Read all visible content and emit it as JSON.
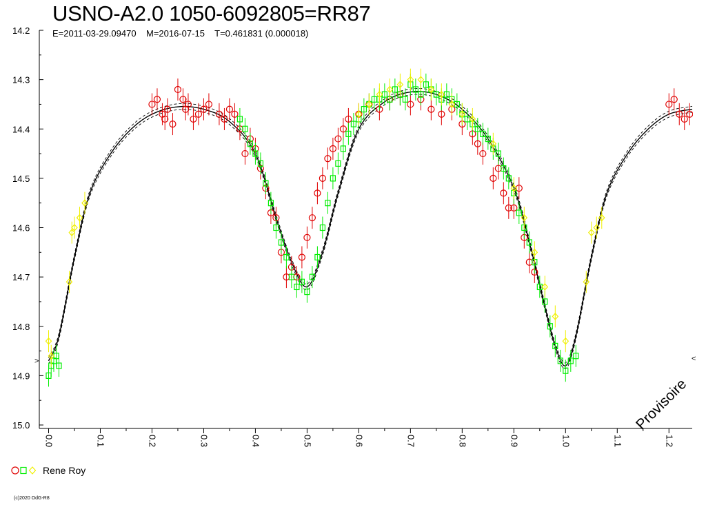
{
  "title": "USNO-A2.0 1050-6092805=RR87",
  "subtitle": "E=2011-03-29.09470    M=2016-07-15    T=0.461831 (0.000018)",
  "legend_label": "Rene Roy",
  "copyright": "(c)2020 OdG-R8",
  "watermark": "Provisoire",
  "corner_mark": "<",
  "colors": {
    "red": "#e00000",
    "green": "#00ee00",
    "yellow": "#f0f000",
    "axis": "#000000"
  },
  "chart_data": {
    "type": "scatter",
    "title": "USNO-A2.0 1050-6092805=RR87",
    "xlim": [
      -0.01,
      1.245
    ],
    "ylim": [
      14.2,
      15.0
    ],
    "y_inverted": true,
    "x_tick_labels": [
      "0.0",
      "0.1",
      "0.2",
      "0.3",
      "0.4",
      "0.5",
      "0.6",
      "0.7",
      "0.8",
      "0.9",
      "1.0",
      "1.1",
      "1.2"
    ],
    "x_ticks": [
      0.0,
      0.1,
      0.2,
      0.3,
      0.4,
      0.5,
      0.6,
      0.7,
      0.8,
      0.9,
      1.0,
      1.1,
      1.2
    ],
    "y_tick_labels": [
      "14.2",
      "14.3",
      "14.4",
      "14.5",
      "14.6",
      "14.7",
      "14.8",
      "14.9",
      "15.0"
    ],
    "y_ticks": [
      14.2,
      14.3,
      14.4,
      14.5,
      14.6,
      14.7,
      14.8,
      14.9,
      15.0
    ],
    "model_curve": {
      "phase": [
        0.0,
        0.02,
        0.05,
        0.08,
        0.12,
        0.16,
        0.2,
        0.25,
        0.3,
        0.35,
        0.4,
        0.44,
        0.47,
        0.5,
        0.53,
        0.56,
        0.6,
        0.65,
        0.7,
        0.75,
        0.8,
        0.85,
        0.9,
        0.93,
        0.96,
        0.98,
        1.0,
        1.02,
        1.05,
        1.08,
        1.12,
        1.16,
        1.2,
        1.245
      ],
      "mag": [
        14.87,
        14.82,
        14.66,
        14.53,
        14.45,
        14.4,
        14.37,
        14.355,
        14.36,
        14.385,
        14.45,
        14.58,
        14.67,
        14.72,
        14.65,
        14.53,
        14.4,
        14.345,
        14.325,
        14.33,
        14.36,
        14.42,
        14.52,
        14.63,
        14.76,
        14.84,
        14.88,
        14.82,
        14.66,
        14.53,
        14.45,
        14.4,
        14.37,
        14.36
      ],
      "offsets": [
        -0.006,
        0.0,
        0.006
      ]
    },
    "series": [
      {
        "name": "Rene Roy",
        "marker": "circle",
        "color": "red",
        "x": [
          0.2,
          0.21,
          0.22,
          0.225,
          0.23,
          0.24,
          0.25,
          0.26,
          0.265,
          0.27,
          0.28,
          0.29,
          0.3,
          0.31,
          0.33,
          0.34,
          0.35,
          0.36,
          0.37,
          0.38,
          0.39,
          0.4,
          0.41,
          0.42,
          0.43,
          0.44,
          0.45,
          0.46,
          0.47,
          0.48,
          0.49,
          0.5,
          0.51,
          0.52,
          0.53,
          0.54,
          0.55,
          0.56,
          0.57,
          0.58,
          0.6,
          0.62,
          0.64,
          0.66,
          0.68,
          0.7,
          0.72,
          0.74,
          0.76,
          0.78,
          0.8,
          0.82,
          0.83,
          0.84,
          0.86,
          0.87,
          0.88,
          0.89,
          0.9,
          0.91,
          0.92,
          0.93,
          0.94,
          1.2,
          1.21,
          1.22,
          1.23,
          1.24
        ],
        "y": [
          14.35,
          14.34,
          14.37,
          14.38,
          14.36,
          14.39,
          14.32,
          14.34,
          14.36,
          14.35,
          14.38,
          14.37,
          14.36,
          14.35,
          14.37,
          14.38,
          14.36,
          14.37,
          14.4,
          14.45,
          14.42,
          14.44,
          14.48,
          14.52,
          14.57,
          14.58,
          14.65,
          14.7,
          14.68,
          14.7,
          14.66,
          14.62,
          14.58,
          14.53,
          14.5,
          14.46,
          14.44,
          14.42,
          14.4,
          14.38,
          14.37,
          14.35,
          14.36,
          14.34,
          14.33,
          14.35,
          14.34,
          14.36,
          14.37,
          14.36,
          14.39,
          14.41,
          14.43,
          14.45,
          14.5,
          14.48,
          14.53,
          14.56,
          14.56,
          14.52,
          14.62,
          14.67,
          14.69,
          14.35,
          14.34,
          14.37,
          14.38,
          14.37
        ]
      },
      {
        "name": "Rene Roy",
        "marker": "square",
        "color": "green",
        "x": [
          0.0,
          0.005,
          0.01,
          0.015,
          0.02,
          0.37,
          0.38,
          0.39,
          0.4,
          0.41,
          0.42,
          0.43,
          0.44,
          0.45,
          0.46,
          0.47,
          0.48,
          0.49,
          0.5,
          0.51,
          0.52,
          0.53,
          0.54,
          0.55,
          0.56,
          0.57,
          0.58,
          0.59,
          0.6,
          0.61,
          0.62,
          0.63,
          0.64,
          0.65,
          0.66,
          0.67,
          0.68,
          0.69,
          0.7,
          0.71,
          0.72,
          0.73,
          0.74,
          0.75,
          0.76,
          0.77,
          0.78,
          0.79,
          0.8,
          0.81,
          0.82,
          0.83,
          0.84,
          0.85,
          0.86,
          0.87,
          0.88,
          0.89,
          0.9,
          0.91,
          0.92,
          0.93,
          0.94,
          0.95,
          0.96,
          0.97,
          0.98,
          0.99,
          1.0,
          1.01,
          1.02
        ],
        "y": [
          14.9,
          14.88,
          14.87,
          14.86,
          14.88,
          14.38,
          14.4,
          14.43,
          14.45,
          14.47,
          14.51,
          14.55,
          14.6,
          14.63,
          14.66,
          14.7,
          14.72,
          14.71,
          14.73,
          14.7,
          14.66,
          14.6,
          14.55,
          14.5,
          14.47,
          14.44,
          14.41,
          14.39,
          14.38,
          14.36,
          14.35,
          14.34,
          14.34,
          14.33,
          14.34,
          14.32,
          14.33,
          14.34,
          14.31,
          14.32,
          14.33,
          14.31,
          14.32,
          14.33,
          14.34,
          14.33,
          14.34,
          14.35,
          14.37,
          14.38,
          14.39,
          14.4,
          14.41,
          14.42,
          14.44,
          14.45,
          14.48,
          14.5,
          14.53,
          14.57,
          14.6,
          14.63,
          14.67,
          14.72,
          14.75,
          14.8,
          14.84,
          14.87,
          14.89,
          14.87,
          14.86
        ]
      },
      {
        "name": "Rene Roy",
        "marker": "diamond",
        "color": "yellow",
        "x": [
          0.0,
          0.005,
          0.04,
          0.045,
          0.05,
          0.06,
          0.07,
          0.6,
          0.62,
          0.64,
          0.66,
          0.68,
          0.7,
          0.72,
          0.74,
          0.76,
          0.78,
          0.8,
          0.82,
          0.86,
          0.9,
          0.92,
          0.94,
          0.96,
          0.98,
          1.0,
          1.04,
          1.05,
          1.06,
          1.07
        ],
        "y": [
          14.83,
          14.86,
          14.71,
          14.61,
          14.6,
          14.58,
          14.55,
          14.37,
          14.35,
          14.33,
          14.32,
          14.31,
          14.3,
          14.3,
          14.32,
          14.33,
          14.35,
          14.37,
          14.38,
          14.43,
          14.52,
          14.58,
          14.65,
          14.72,
          14.78,
          14.83,
          14.71,
          14.61,
          14.6,
          14.58
        ]
      }
    ]
  }
}
